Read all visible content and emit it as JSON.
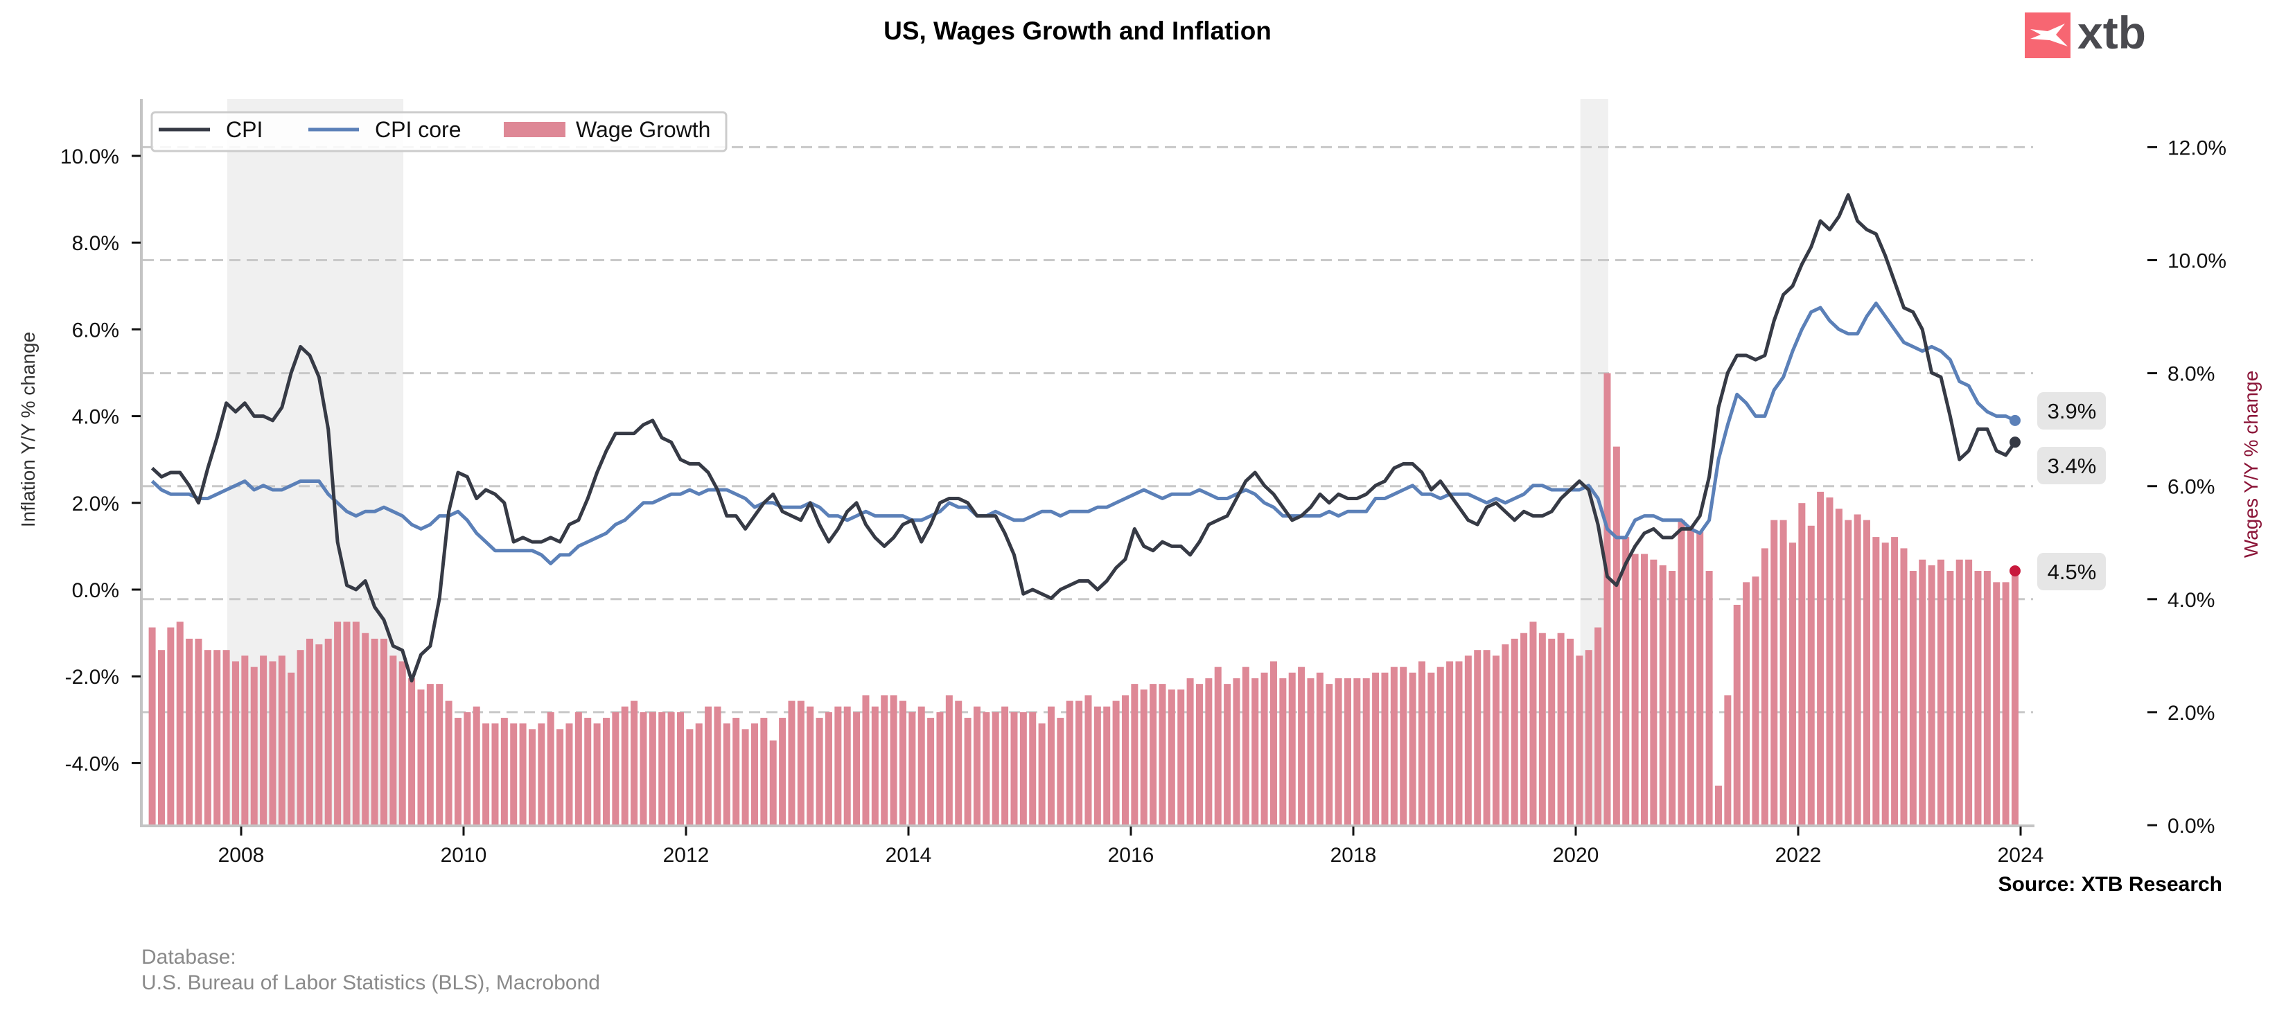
{
  "header": {
    "title": "US, Wages Growth and Inflation",
    "logo_text": "xtb"
  },
  "footer": {
    "source": "Source: XTB Research",
    "database_label": "Database:",
    "database_value": "U.S. Bureau of Labor Statistics (BLS), Macrobond"
  },
  "colors": {
    "cpi": "#363a45",
    "core": "#5b80b8",
    "wages": "#de8896",
    "wage_dot": "#c8193c",
    "recession": "#f0f0f0",
    "grid": "#c8c8c8",
    "right_label": "#8b1538",
    "logo_red": "#f76672"
  },
  "chart_data": {
    "type": "bar+line",
    "title": "US, Wages Growth and Inflation",
    "x_start": "2007-03",
    "frequency": "monthly",
    "x_ticks": [
      "2008",
      "2010",
      "2012",
      "2014",
      "2016",
      "2018",
      "2020",
      "2022",
      "2024"
    ],
    "x_range": [
      2007.1,
      2024.1
    ],
    "left_axis": {
      "label": "Inflation Y/Y % change",
      "ylim": [
        -5.45,
        11.3
      ],
      "ticks": [
        -4,
        -2,
        0,
        2,
        4,
        6,
        8,
        10
      ],
      "tick_labels": [
        "-4.0%",
        "-2.0%",
        "0.0%",
        "2.0%",
        "4.0%",
        "6.0%",
        "8.0%",
        "10.0%"
      ]
    },
    "right_axis": {
      "label": "Wages Y/Y % change",
      "ylim": [
        0,
        12.8
      ],
      "ticks": [
        0,
        2,
        4,
        6,
        8,
        10,
        12
      ],
      "tick_labels": [
        "0.0%",
        "2.0%",
        "4.0%",
        "6.0%",
        "8.0%",
        "10.0%",
        "12.0%"
      ]
    },
    "grid": "horizontal dashed at right-axis ticks",
    "legend": {
      "placement": "top-left",
      "entries": [
        "CPI",
        "CPI core",
        "Wage Growth"
      ]
    },
    "recessions": [
      [
        "2007-12",
        "2009-06"
      ],
      [
        "2020-02",
        "2020-04"
      ]
    ],
    "series": [
      {
        "name": "CPI",
        "axis": "left",
        "type": "line",
        "values": [
          2.8,
          2.6,
          2.7,
          2.7,
          2.4,
          2.0,
          2.8,
          3.5,
          4.3,
          4.1,
          4.3,
          4.0,
          4.0,
          3.9,
          4.2,
          5.0,
          5.6,
          5.4,
          4.9,
          3.7,
          1.1,
          0.1,
          0.0,
          0.2,
          -0.4,
          -0.7,
          -1.3,
          -1.4,
          -2.1,
          -1.5,
          -1.3,
          -0.2,
          1.8,
          2.7,
          2.6,
          2.1,
          2.3,
          2.2,
          2.0,
          1.1,
          1.2,
          1.1,
          1.1,
          1.2,
          1.1,
          1.5,
          1.6,
          2.1,
          2.7,
          3.2,
          3.6,
          3.6,
          3.6,
          3.8,
          3.9,
          3.5,
          3.4,
          3.0,
          2.9,
          2.9,
          2.7,
          2.3,
          1.7,
          1.7,
          1.4,
          1.7,
          2.0,
          2.2,
          1.8,
          1.7,
          1.6,
          2.0,
          1.5,
          1.1,
          1.4,
          1.8,
          2.0,
          1.5,
          1.2,
          1.0,
          1.2,
          1.5,
          1.6,
          1.1,
          1.5,
          2.0,
          2.1,
          2.1,
          2.0,
          1.7,
          1.7,
          1.7,
          1.3,
          0.8,
          -0.1,
          0.0,
          -0.1,
          -0.2,
          0.0,
          0.1,
          0.2,
          0.2,
          0.0,
          0.2,
          0.5,
          0.7,
          1.4,
          1.0,
          0.9,
          1.1,
          1.0,
          1.0,
          0.8,
          1.1,
          1.5,
          1.6,
          1.7,
          2.1,
          2.5,
          2.7,
          2.4,
          2.2,
          1.9,
          1.6,
          1.7,
          1.9,
          2.2,
          2.0,
          2.2,
          2.1,
          2.1,
          2.2,
          2.4,
          2.5,
          2.8,
          2.9,
          2.9,
          2.7,
          2.3,
          2.5,
          2.2,
          1.9,
          1.6,
          1.5,
          1.9,
          2.0,
          1.8,
          1.6,
          1.8,
          1.7,
          1.7,
          1.8,
          2.1,
          2.3,
          2.5,
          2.3,
          1.5,
          0.3,
          0.1,
          0.6,
          1.0,
          1.3,
          1.4,
          1.2,
          1.2,
          1.4,
          1.4,
          1.7,
          2.6,
          4.2,
          5.0,
          5.4,
          5.4,
          5.3,
          5.4,
          6.2,
          6.8,
          7.0,
          7.5,
          7.9,
          8.5,
          8.3,
          8.6,
          9.1,
          8.5,
          8.3,
          8.2,
          7.7,
          7.1,
          6.5,
          6.4,
          6.0,
          5.0,
          4.9,
          4.0,
          3.0,
          3.2,
          3.7,
          3.7,
          3.2,
          3.1,
          3.4
        ]
      },
      {
        "name": "CPI core",
        "axis": "left",
        "type": "line",
        "values": [
          2.5,
          2.3,
          2.2,
          2.2,
          2.2,
          2.1,
          2.1,
          2.2,
          2.3,
          2.4,
          2.5,
          2.3,
          2.4,
          2.3,
          2.3,
          2.4,
          2.5,
          2.5,
          2.5,
          2.2,
          2.0,
          1.8,
          1.7,
          1.8,
          1.8,
          1.9,
          1.8,
          1.7,
          1.5,
          1.4,
          1.5,
          1.7,
          1.7,
          1.8,
          1.6,
          1.3,
          1.1,
          0.9,
          0.9,
          0.9,
          0.9,
          0.9,
          0.8,
          0.6,
          0.8,
          0.8,
          1.0,
          1.1,
          1.2,
          1.3,
          1.5,
          1.6,
          1.8,
          2.0,
          2.0,
          2.1,
          2.2,
          2.2,
          2.3,
          2.2,
          2.3,
          2.3,
          2.3,
          2.2,
          2.1,
          1.9,
          2.0,
          2.0,
          1.9,
          1.9,
          1.9,
          2.0,
          1.9,
          1.7,
          1.7,
          1.6,
          1.7,
          1.8,
          1.7,
          1.7,
          1.7,
          1.7,
          1.6,
          1.6,
          1.7,
          1.8,
          2.0,
          1.9,
          1.9,
          1.7,
          1.7,
          1.8,
          1.7,
          1.6,
          1.6,
          1.7,
          1.8,
          1.8,
          1.7,
          1.8,
          1.8,
          1.8,
          1.9,
          1.9,
          2.0,
          2.1,
          2.2,
          2.3,
          2.2,
          2.1,
          2.2,
          2.2,
          2.2,
          2.3,
          2.2,
          2.1,
          2.1,
          2.2,
          2.3,
          2.2,
          2.0,
          1.9,
          1.7,
          1.7,
          1.7,
          1.7,
          1.7,
          1.8,
          1.7,
          1.8,
          1.8,
          1.8,
          2.1,
          2.1,
          2.2,
          2.3,
          2.4,
          2.2,
          2.2,
          2.1,
          2.2,
          2.2,
          2.2,
          2.1,
          2.0,
          2.1,
          2.0,
          2.1,
          2.2,
          2.4,
          2.4,
          2.3,
          2.3,
          2.3,
          2.3,
          2.4,
          2.1,
          1.4,
          1.2,
          1.2,
          1.6,
          1.7,
          1.7,
          1.6,
          1.6,
          1.6,
          1.4,
          1.3,
          1.6,
          3.0,
          3.8,
          4.5,
          4.3,
          4.0,
          4.0,
          4.6,
          4.9,
          5.5,
          6.0,
          6.4,
          6.5,
          6.2,
          6.0,
          5.9,
          5.9,
          6.3,
          6.6,
          6.3,
          6.0,
          5.7,
          5.6,
          5.5,
          5.6,
          5.5,
          5.3,
          4.8,
          4.7,
          4.3,
          4.1,
          4.0,
          4.0,
          3.9
        ]
      },
      {
        "name": "Wage Growth",
        "axis": "right",
        "type": "bar",
        "values": [
          3.5,
          3.1,
          3.5,
          3.6,
          3.3,
          3.3,
          3.1,
          3.1,
          3.1,
          2.9,
          3.0,
          2.8,
          3.0,
          2.9,
          3.0,
          2.7,
          3.1,
          3.3,
          3.2,
          3.3,
          3.6,
          3.6,
          3.6,
          3.4,
          3.3,
          3.3,
          3.0,
          2.9,
          2.6,
          2.4,
          2.5,
          2.5,
          2.2,
          1.9,
          2.0,
          2.1,
          1.8,
          1.8,
          1.9,
          1.8,
          1.8,
          1.7,
          1.8,
          2.0,
          1.7,
          1.8,
          2.0,
          1.9,
          1.8,
          1.9,
          2.0,
          2.1,
          2.2,
          2.0,
          2.0,
          2.0,
          2.0,
          2.0,
          1.7,
          1.8,
          2.1,
          2.1,
          1.8,
          1.9,
          1.7,
          1.8,
          1.9,
          1.5,
          1.9,
          2.2,
          2.2,
          2.1,
          1.9,
          2.0,
          2.1,
          2.1,
          2.0,
          2.3,
          2.1,
          2.3,
          2.3,
          2.2,
          2.0,
          2.1,
          1.9,
          2.0,
          2.3,
          2.2,
          1.9,
          2.1,
          2.0,
          2.0,
          2.1,
          2.0,
          2.0,
          2.0,
          1.8,
          2.1,
          1.9,
          2.2,
          2.2,
          2.3,
          2.1,
          2.1,
          2.2,
          2.3,
          2.5,
          2.4,
          2.5,
          2.5,
          2.4,
          2.4,
          2.6,
          2.5,
          2.6,
          2.8,
          2.5,
          2.6,
          2.8,
          2.6,
          2.7,
          2.9,
          2.6,
          2.7,
          2.8,
          2.6,
          2.7,
          2.5,
          2.6,
          2.6,
          2.6,
          2.6,
          2.7,
          2.7,
          2.8,
          2.8,
          2.7,
          2.9,
          2.7,
          2.8,
          2.9,
          2.9,
          3.0,
          3.1,
          3.1,
          3.0,
          3.2,
          3.3,
          3.4,
          3.6,
          3.4,
          3.3,
          3.4,
          3.3,
          3.0,
          3.1,
          3.5,
          8.0,
          6.7,
          5.1,
          4.8,
          4.8,
          4.7,
          4.6,
          4.5,
          5.4,
          5.3,
          5.2,
          4.5,
          0.7,
          2.3,
          3.9,
          4.3,
          4.4,
          4.9,
          5.4,
          5.4,
          5.0,
          5.7,
          5.3,
          5.9,
          5.8,
          5.6,
          5.4,
          5.5,
          5.4,
          5.1,
          5.0,
          5.1,
          4.9,
          4.5,
          4.7,
          4.6,
          4.7,
          4.5,
          4.7,
          4.7,
          4.5,
          4.5,
          4.3,
          4.3,
          4.5
        ]
      }
    ],
    "annotations": [
      {
        "series": "CPI core",
        "label": "3.9%"
      },
      {
        "series": "CPI",
        "label": "3.4%"
      },
      {
        "series": "Wage Growth",
        "label": "4.5%"
      }
    ]
  }
}
